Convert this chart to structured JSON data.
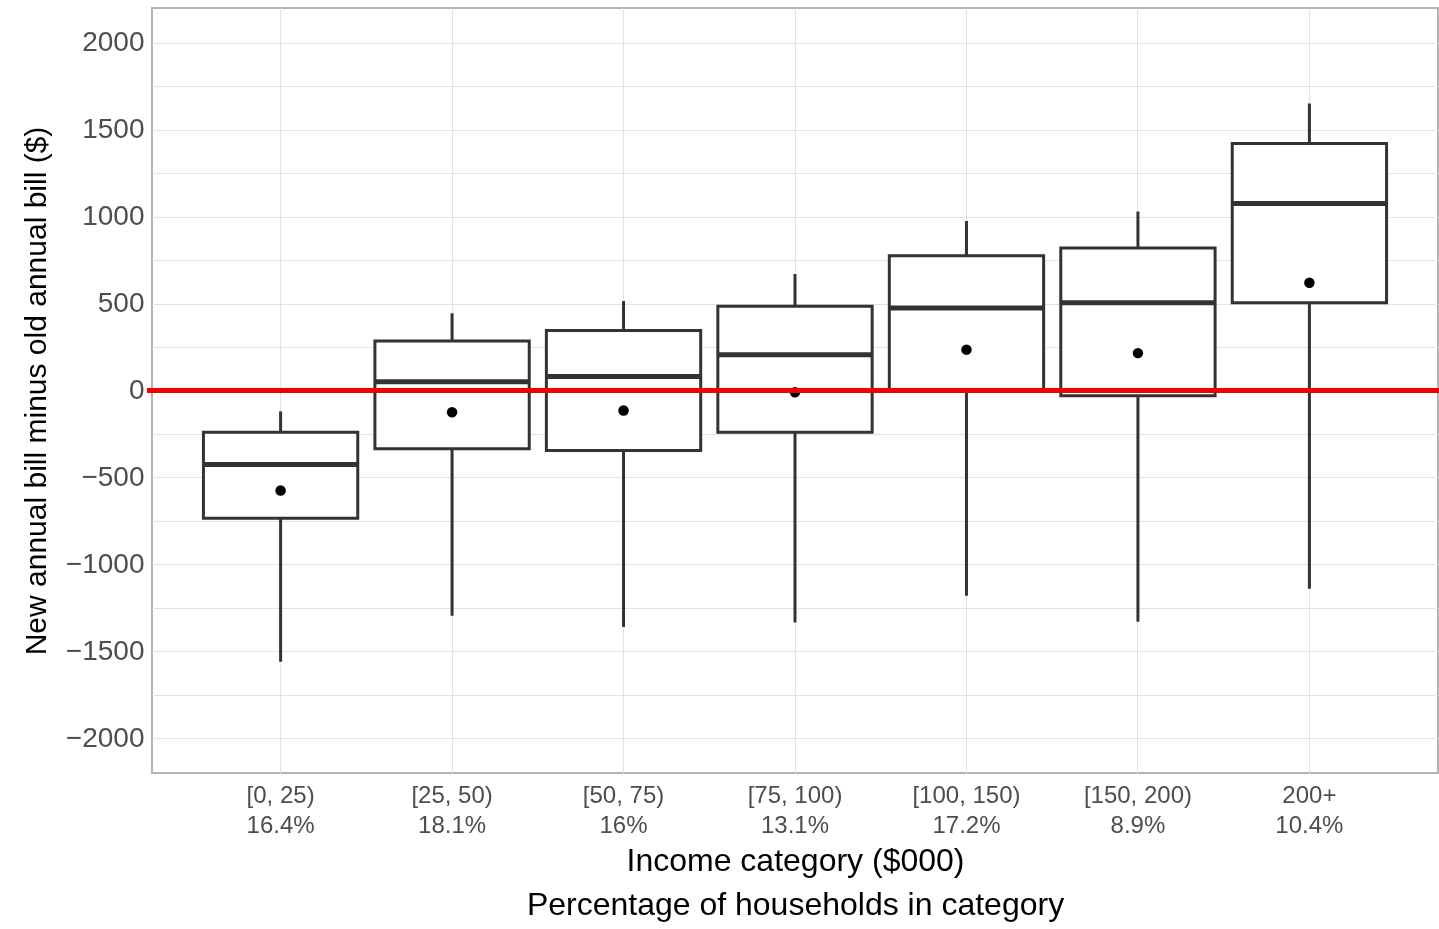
{
  "chart_data": {
    "type": "box",
    "xlabel": "Income category ($000)\nPercentage of households in category",
    "ylabel": "New annual bill minus old annual bill ($)",
    "categories": [
      "[0, 25)\n16.4%",
      "[25, 50)\n18.1%",
      "[50, 75)\n16%",
      "[75, 100)\n13.1%",
      "[100, 150)\n17.2%",
      "[150, 200)\n8.9%",
      "200+\n10.4%"
    ],
    "boxes": [
      {
        "low": -1560,
        "q1": -735,
        "median": -425,
        "q3": -240,
        "high": -120,
        "mean": -575
      },
      {
        "low": -1295,
        "q1": -335,
        "median": 50,
        "q3": 285,
        "high": 445,
        "mean": -125
      },
      {
        "low": -1360,
        "q1": -345,
        "median": 80,
        "q3": 345,
        "high": 515,
        "mean": -115
      },
      {
        "low": -1335,
        "q1": -240,
        "median": 205,
        "q3": 485,
        "high": 670,
        "mean": -10
      },
      {
        "low": -1180,
        "q1": -5,
        "median": 475,
        "q3": 775,
        "high": 975,
        "mean": 235
      },
      {
        "low": -1330,
        "q1": -30,
        "median": 505,
        "q3": 820,
        "high": 1030,
        "mean": 215
      },
      {
        "low": -1140,
        "q1": 505,
        "median": 1075,
        "q3": 1420,
        "high": 1650,
        "mean": 620
      }
    ],
    "color": "#333333",
    "ylim": [
      -2200,
      2200
    ],
    "yticks": [
      -2000,
      {
        "value": -1750,
        "label": null
      },
      -1500,
      {
        "value": -1250,
        "label": null
      },
      -1000,
      {
        "value": -750,
        "label": null
      },
      -500,
      {
        "value": -250,
        "label": null
      },
      0,
      {
        "value": 250,
        "label": null
      },
      500,
      {
        "value": 750,
        "label": null
      },
      1000,
      {
        "value": 1250,
        "label": null
      },
      1500,
      {
        "value": 1750,
        "label": null
      },
      2000
    ],
    "ref_lines": [
      {
        "axis": "y",
        "value": 0,
        "color": "#ee0000"
      }
    ],
    "grid": true
  }
}
